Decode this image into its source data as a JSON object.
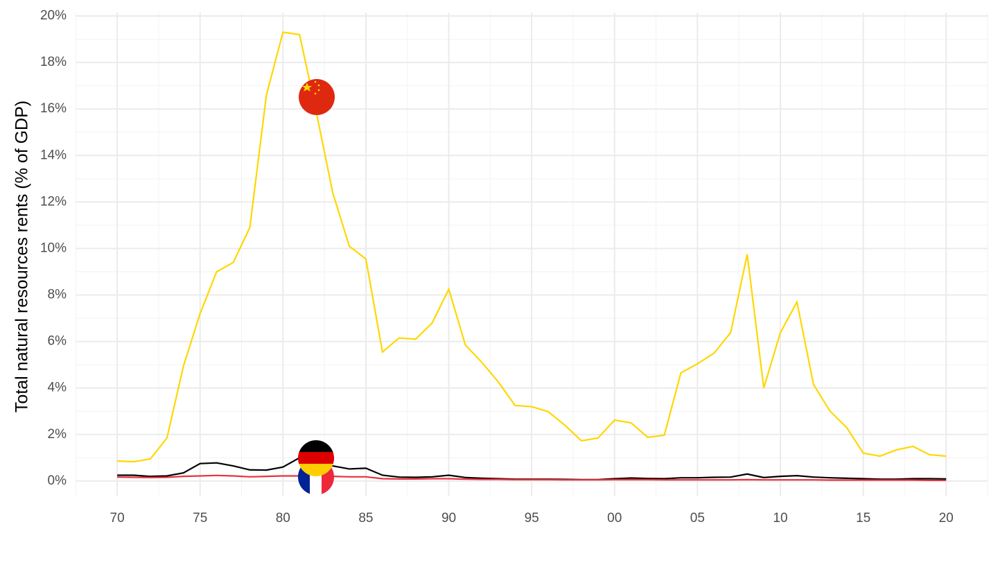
{
  "chart_data": {
    "type": "line",
    "y_label": "Total natural resources rents (% of GDP)",
    "x": [
      1970,
      1971,
      1972,
      1973,
      1974,
      1975,
      1976,
      1977,
      1978,
      1979,
      1980,
      1981,
      1982,
      1983,
      1984,
      1985,
      1986,
      1987,
      1988,
      1989,
      1990,
      1991,
      1992,
      1993,
      1994,
      1995,
      1996,
      1997,
      1998,
      1999,
      2000,
      2001,
      2002,
      2003,
      2004,
      2005,
      2006,
      2007,
      2008,
      2009,
      2010,
      2011,
      2012,
      2013,
      2014,
      2015,
      2016,
      2017,
      2018,
      2019,
      2020
    ],
    "series": [
      {
        "color": "#FFD700",
        "values": [
          0.86,
          0.83,
          0.95,
          1.85,
          4.95,
          7.2,
          9.0,
          9.4,
          10.9,
          16.6,
          19.3,
          19.2,
          15.9,
          12.4,
          10.1,
          9.55,
          5.55,
          6.15,
          6.1,
          6.8,
          8.25,
          5.85,
          5.1,
          4.25,
          3.25,
          3.2,
          2.98,
          2.4,
          1.73,
          1.85,
          2.62,
          2.5,
          1.88,
          1.97,
          4.65,
          5.04,
          5.5,
          6.38,
          9.75,
          4.0,
          6.38,
          7.7,
          4.15,
          3.0,
          2.3,
          1.2,
          1.07,
          1.34,
          1.49,
          1.13,
          1.07
        ]
      },
      {
        "color": "#000000",
        "values": [
          0.25,
          0.25,
          0.2,
          0.22,
          0.35,
          0.75,
          0.78,
          0.65,
          0.48,
          0.47,
          0.6,
          1.0,
          0.9,
          0.65,
          0.52,
          0.55,
          0.25,
          0.17,
          0.16,
          0.18,
          0.25,
          0.15,
          0.12,
          0.1,
          0.08,
          0.08,
          0.08,
          0.07,
          0.06,
          0.06,
          0.1,
          0.13,
          0.11,
          0.1,
          0.14,
          0.14,
          0.16,
          0.17,
          0.3,
          0.15,
          0.2,
          0.23,
          0.17,
          0.14,
          0.12,
          0.1,
          0.08,
          0.08,
          0.1,
          0.1,
          0.09
        ]
      },
      {
        "color": "#E8313E",
        "values": [
          0.17,
          0.16,
          0.15,
          0.16,
          0.2,
          0.22,
          0.24,
          0.22,
          0.18,
          0.2,
          0.22,
          0.22,
          0.2,
          0.2,
          0.18,
          0.18,
          0.1,
          0.09,
          0.09,
          0.1,
          0.1,
          0.08,
          0.07,
          0.07,
          0.06,
          0.06,
          0.06,
          0.05,
          0.05,
          0.05,
          0.06,
          0.06,
          0.06,
          0.05,
          0.05,
          0.05,
          0.05,
          0.05,
          0.06,
          0.05,
          0.05,
          0.05,
          0.05,
          0.04,
          0.04,
          0.04,
          0.04,
          0.04,
          0.04,
          0.03,
          0.03
        ]
      }
    ],
    "xlim": [
      1967.53,
      2022.5
    ],
    "ylim": [
      -0.63,
      20.15
    ],
    "xticks": [
      {
        "value": 1970,
        "label": "70"
      },
      {
        "value": 1975,
        "label": "75"
      },
      {
        "value": 1980,
        "label": "80"
      },
      {
        "value": 1985,
        "label": "85"
      },
      {
        "value": 1990,
        "label": "90"
      },
      {
        "value": 1995,
        "label": "95"
      },
      {
        "value": 2000,
        "label": "00"
      },
      {
        "value": 2005,
        "label": "05"
      },
      {
        "value": 2010,
        "label": "10"
      },
      {
        "value": 2015,
        "label": "15"
      },
      {
        "value": 2020,
        "label": "20"
      }
    ],
    "xminorticks": [
      1967.5,
      1972.5,
      1977.5,
      1982.5,
      1987.5,
      1992.5,
      1997.5,
      2002.5,
      2007.5,
      2012.5,
      2017.5,
      2022.5
    ],
    "yticks": [
      {
        "value": 0,
        "label": "0%"
      },
      {
        "value": 2,
        "label": "2%"
      },
      {
        "value": 4,
        "label": "4%"
      },
      {
        "value": 6,
        "label": "6%"
      },
      {
        "value": 8,
        "label": "8%"
      },
      {
        "value": 10,
        "label": "10%"
      },
      {
        "value": 12,
        "label": "12%"
      },
      {
        "value": 14,
        "label": "14%"
      },
      {
        "value": 16,
        "label": "16%"
      },
      {
        "value": 18,
        "label": "18%"
      },
      {
        "value": 20,
        "label": "20%"
      }
    ],
    "yminorticks": [
      1,
      3,
      5,
      7,
      9,
      11,
      13,
      15,
      17,
      19
    ],
    "grid": true
  }
}
